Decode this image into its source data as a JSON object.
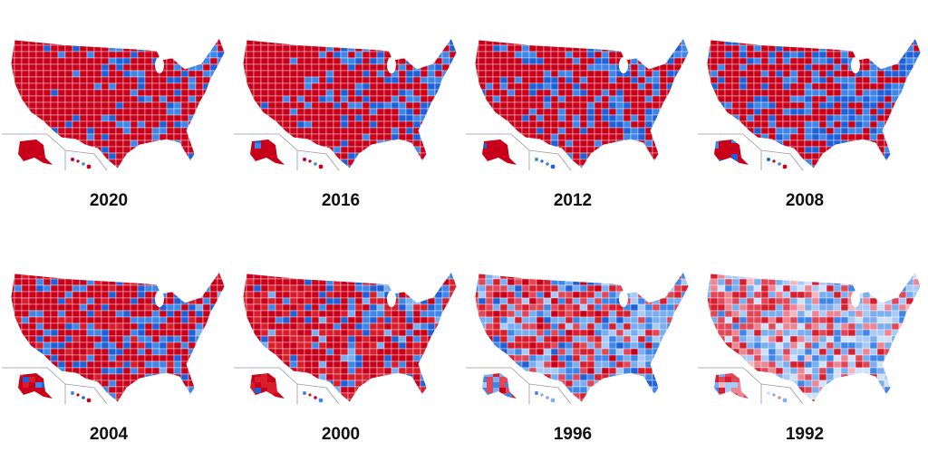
{
  "maps": [
    {
      "year": "2020"
    },
    {
      "year": "2016"
    },
    {
      "year": "2012"
    },
    {
      "year": "2008"
    },
    {
      "year": "2004"
    },
    {
      "year": "2000"
    },
    {
      "year": "1996"
    },
    {
      "year": "1992"
    }
  ]
}
